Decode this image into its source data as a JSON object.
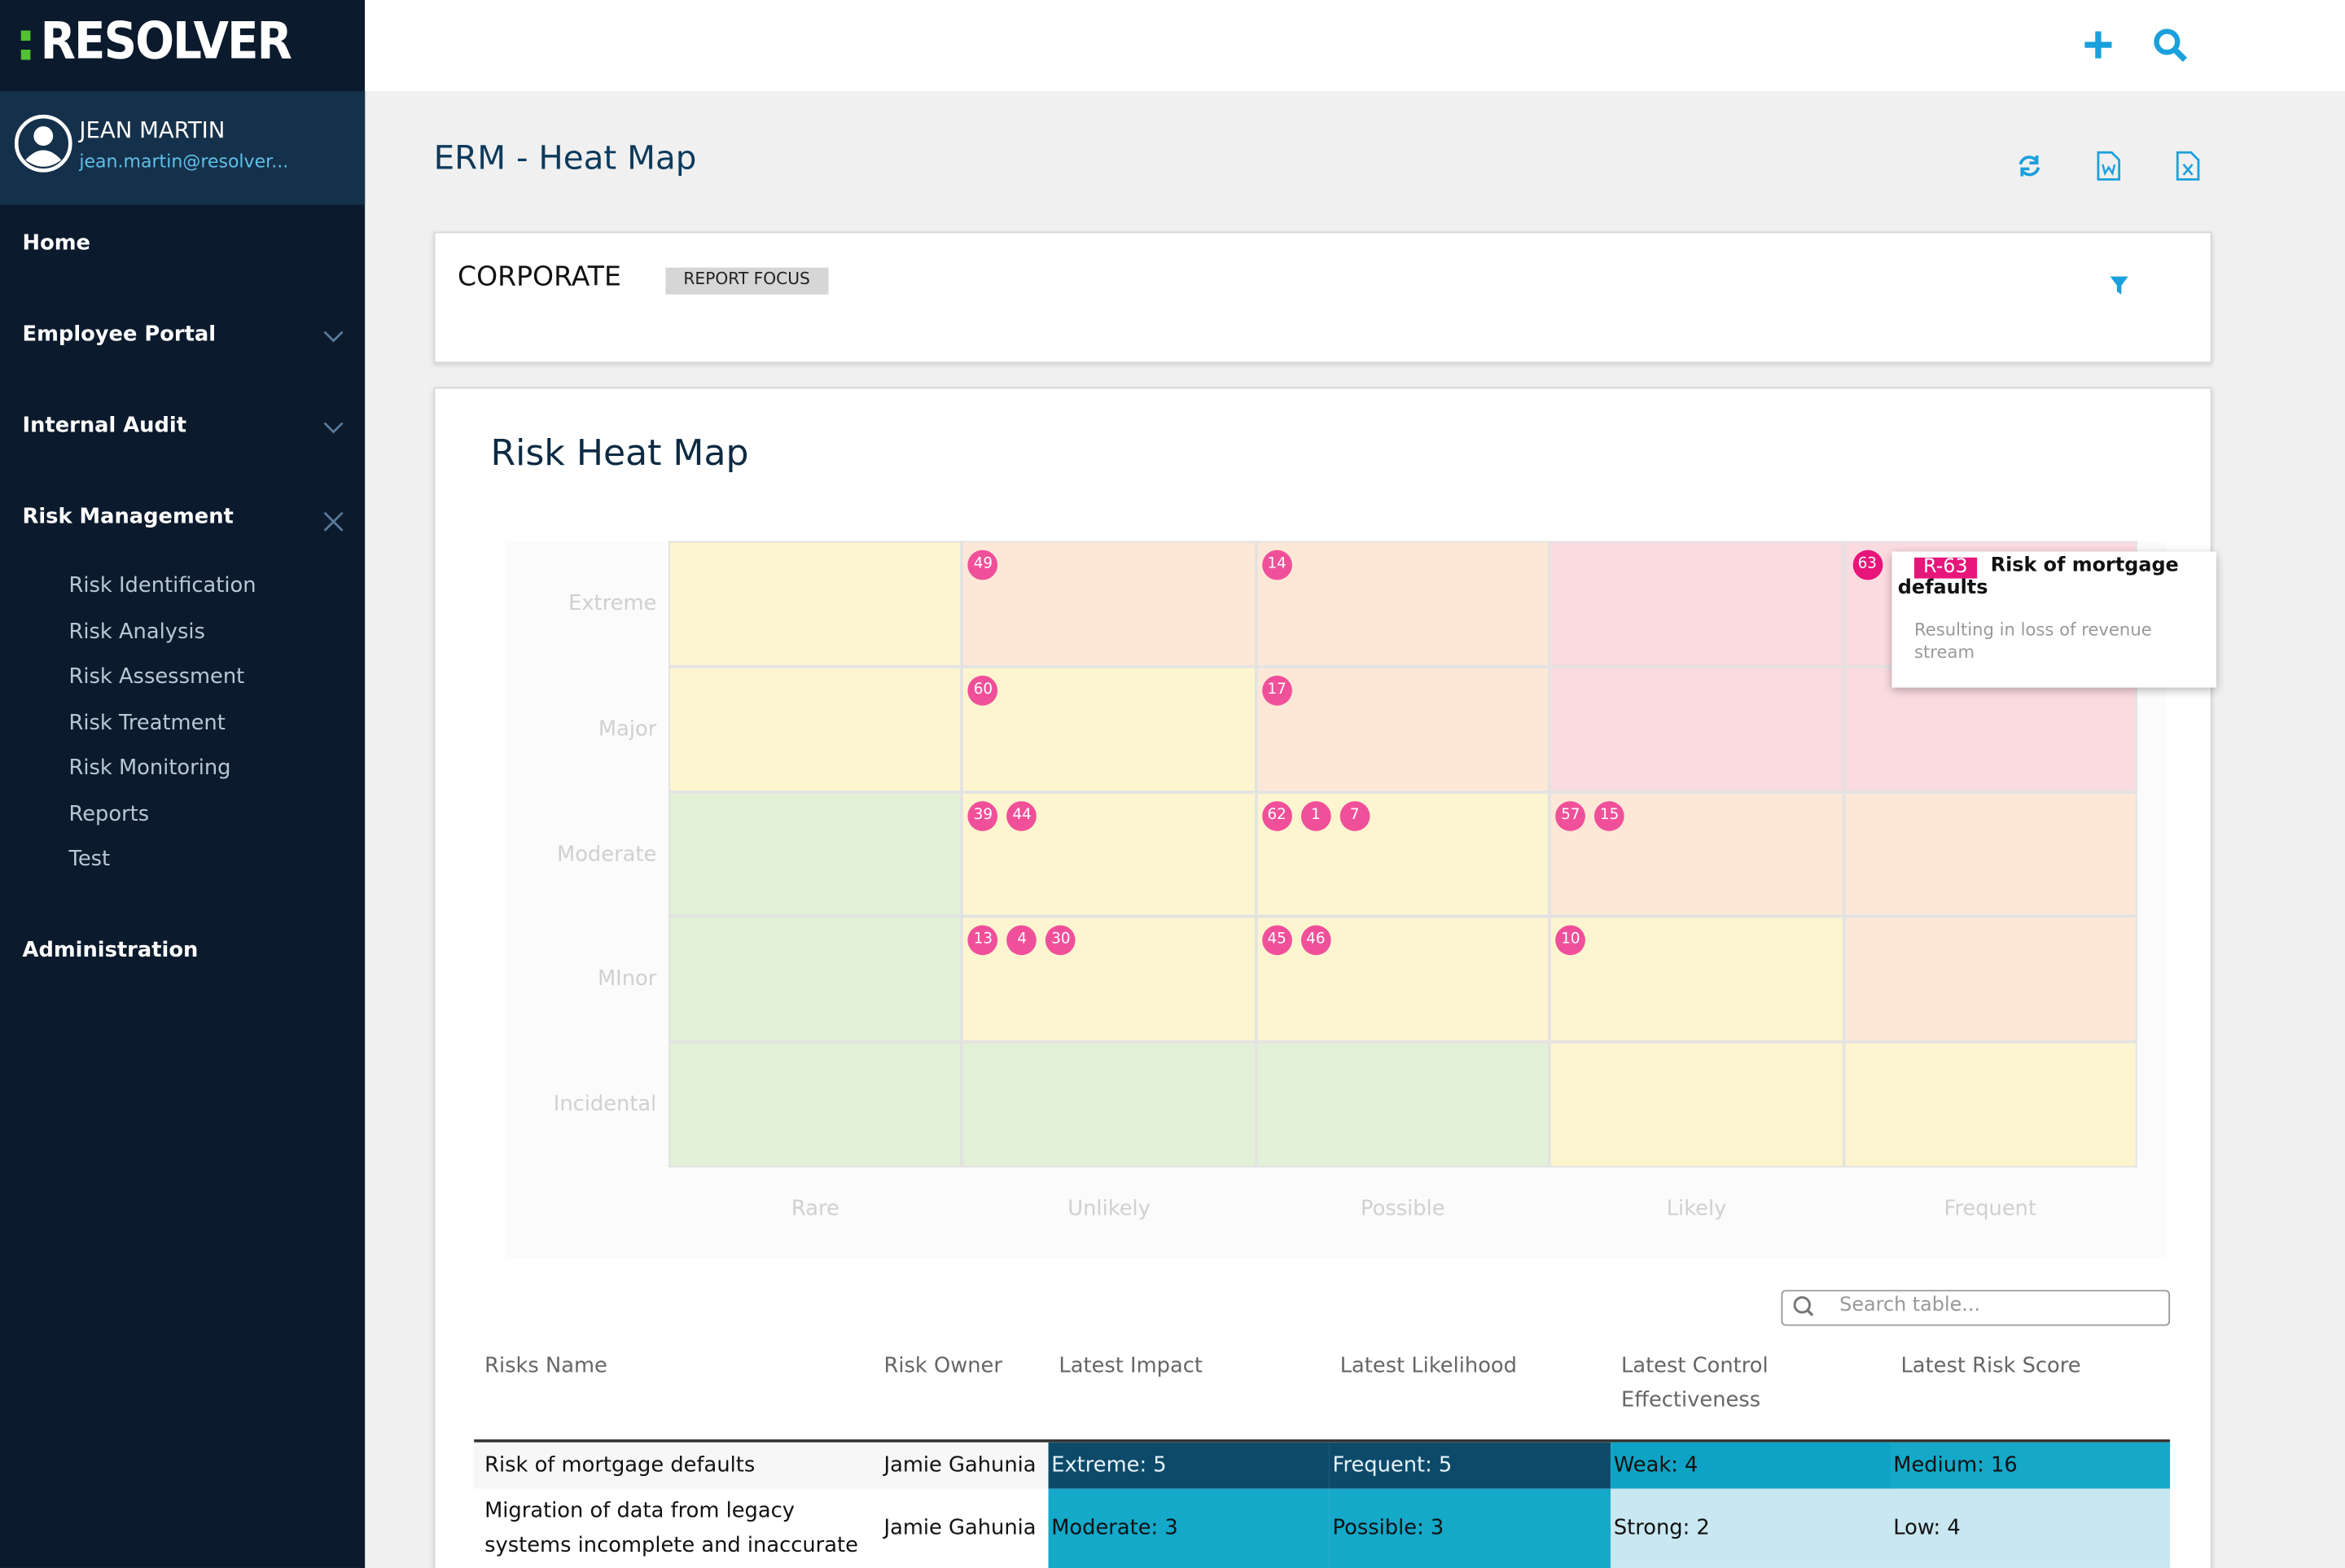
{
  "header": {
    "logo_mark": ":",
    "logo": "RESOLVER"
  },
  "user": {
    "name": "JEAN MARTIN",
    "email": "jean.martin@resolver..."
  },
  "nav": {
    "items": [
      {
        "label": "Home"
      },
      {
        "label": "Employee Portal"
      },
      {
        "label": "Internal Audit"
      },
      {
        "label": "Risk Management"
      }
    ],
    "sub_items": [
      "Risk Identification",
      "Risk Analysis",
      "Risk Assessment",
      "Risk Treatment",
      "Risk Monitoring",
      "Reports",
      "Test"
    ],
    "footer_item": "Administration"
  },
  "page": {
    "title": "ERM - Heat Map"
  },
  "focus": {
    "title": "CORPORATE",
    "badge": "REPORT FOCUS"
  },
  "heatmap": {
    "title": "Risk Heat Map",
    "rows": [
      "Extreme",
      "Major",
      "Moderate",
      "MInor",
      "Incidental"
    ],
    "columns": [
      "Rare",
      "Unlikely",
      "Possible",
      "Likely",
      "Frequent"
    ],
    "cell_colors": [
      [
        "#fdf5d0",
        "#fde8d8",
        "#fde8d8",
        "#fadbe0",
        "#fadbe0"
      ],
      [
        "#fdf5d0",
        "#fdf5d0",
        "#fde8d8",
        "#fadbe0",
        "#fadbe0"
      ],
      [
        "#e1f0d6",
        "#fdf5d0",
        "#fdf5d0",
        "#fde8d8",
        "#fde8d8"
      ],
      [
        "#e1f0d6",
        "#fdf5d0",
        "#fdf5d0",
        "#fdf5d0",
        "#fde8d8"
      ],
      [
        "#e1f0d6",
        "#e1f0d6",
        "#e1f0d6",
        "#fdf5d0",
        "#fdf5d0"
      ]
    ],
    "bubbles": [
      [
        [],
        [
          49
        ],
        [
          14
        ],
        [],
        [
          63
        ]
      ],
      [
        [],
        [
          60
        ],
        [
          17
        ],
        [],
        []
      ],
      [
        [],
        [
          39,
          44
        ],
        [
          62,
          1,
          7
        ],
        [
          57,
          15
        ],
        []
      ],
      [
        [],
        [
          13,
          4,
          30
        ],
        [
          45,
          46
        ],
        [
          10
        ],
        []
      ],
      [
        [],
        [],
        [],
        [],
        []
      ]
    ],
    "tooltip": {
      "badge": "R-63",
      "title": "Risk of mortgage defaults",
      "text": "Resulting in loss of revenue stream"
    }
  },
  "table": {
    "search_placeholder": "Search table...",
    "headers": [
      "Risks Name",
      "Risk Owner",
      "Latest Impact",
      "Latest Likelihood",
      "Latest Control Effectiveness",
      "Latest Risk Score"
    ],
    "rows": [
      [
        "Risk of mortgage defaults",
        "Jamie Gahunia",
        "Extreme: 5",
        "Frequent: 5",
        "Weak: 4",
        "Medium: 16"
      ],
      [
        "Migration of data from legacy systems incomplete and inaccurate",
        "Jamie Gahunia",
        "Moderate: 3",
        "Possible: 3",
        "Strong: 2",
        "Low: 4"
      ]
    ],
    "cell_colors": [
      [
        "",
        "",
        "#0d4a6a",
        "#0d4a6a",
        "#0ea3c4",
        "#16a8c8"
      ],
      [
        "",
        "",
        "#14a8c9",
        "#14a8c9",
        "#c9e7f0",
        "#c9e7f0"
      ]
    ]
  }
}
